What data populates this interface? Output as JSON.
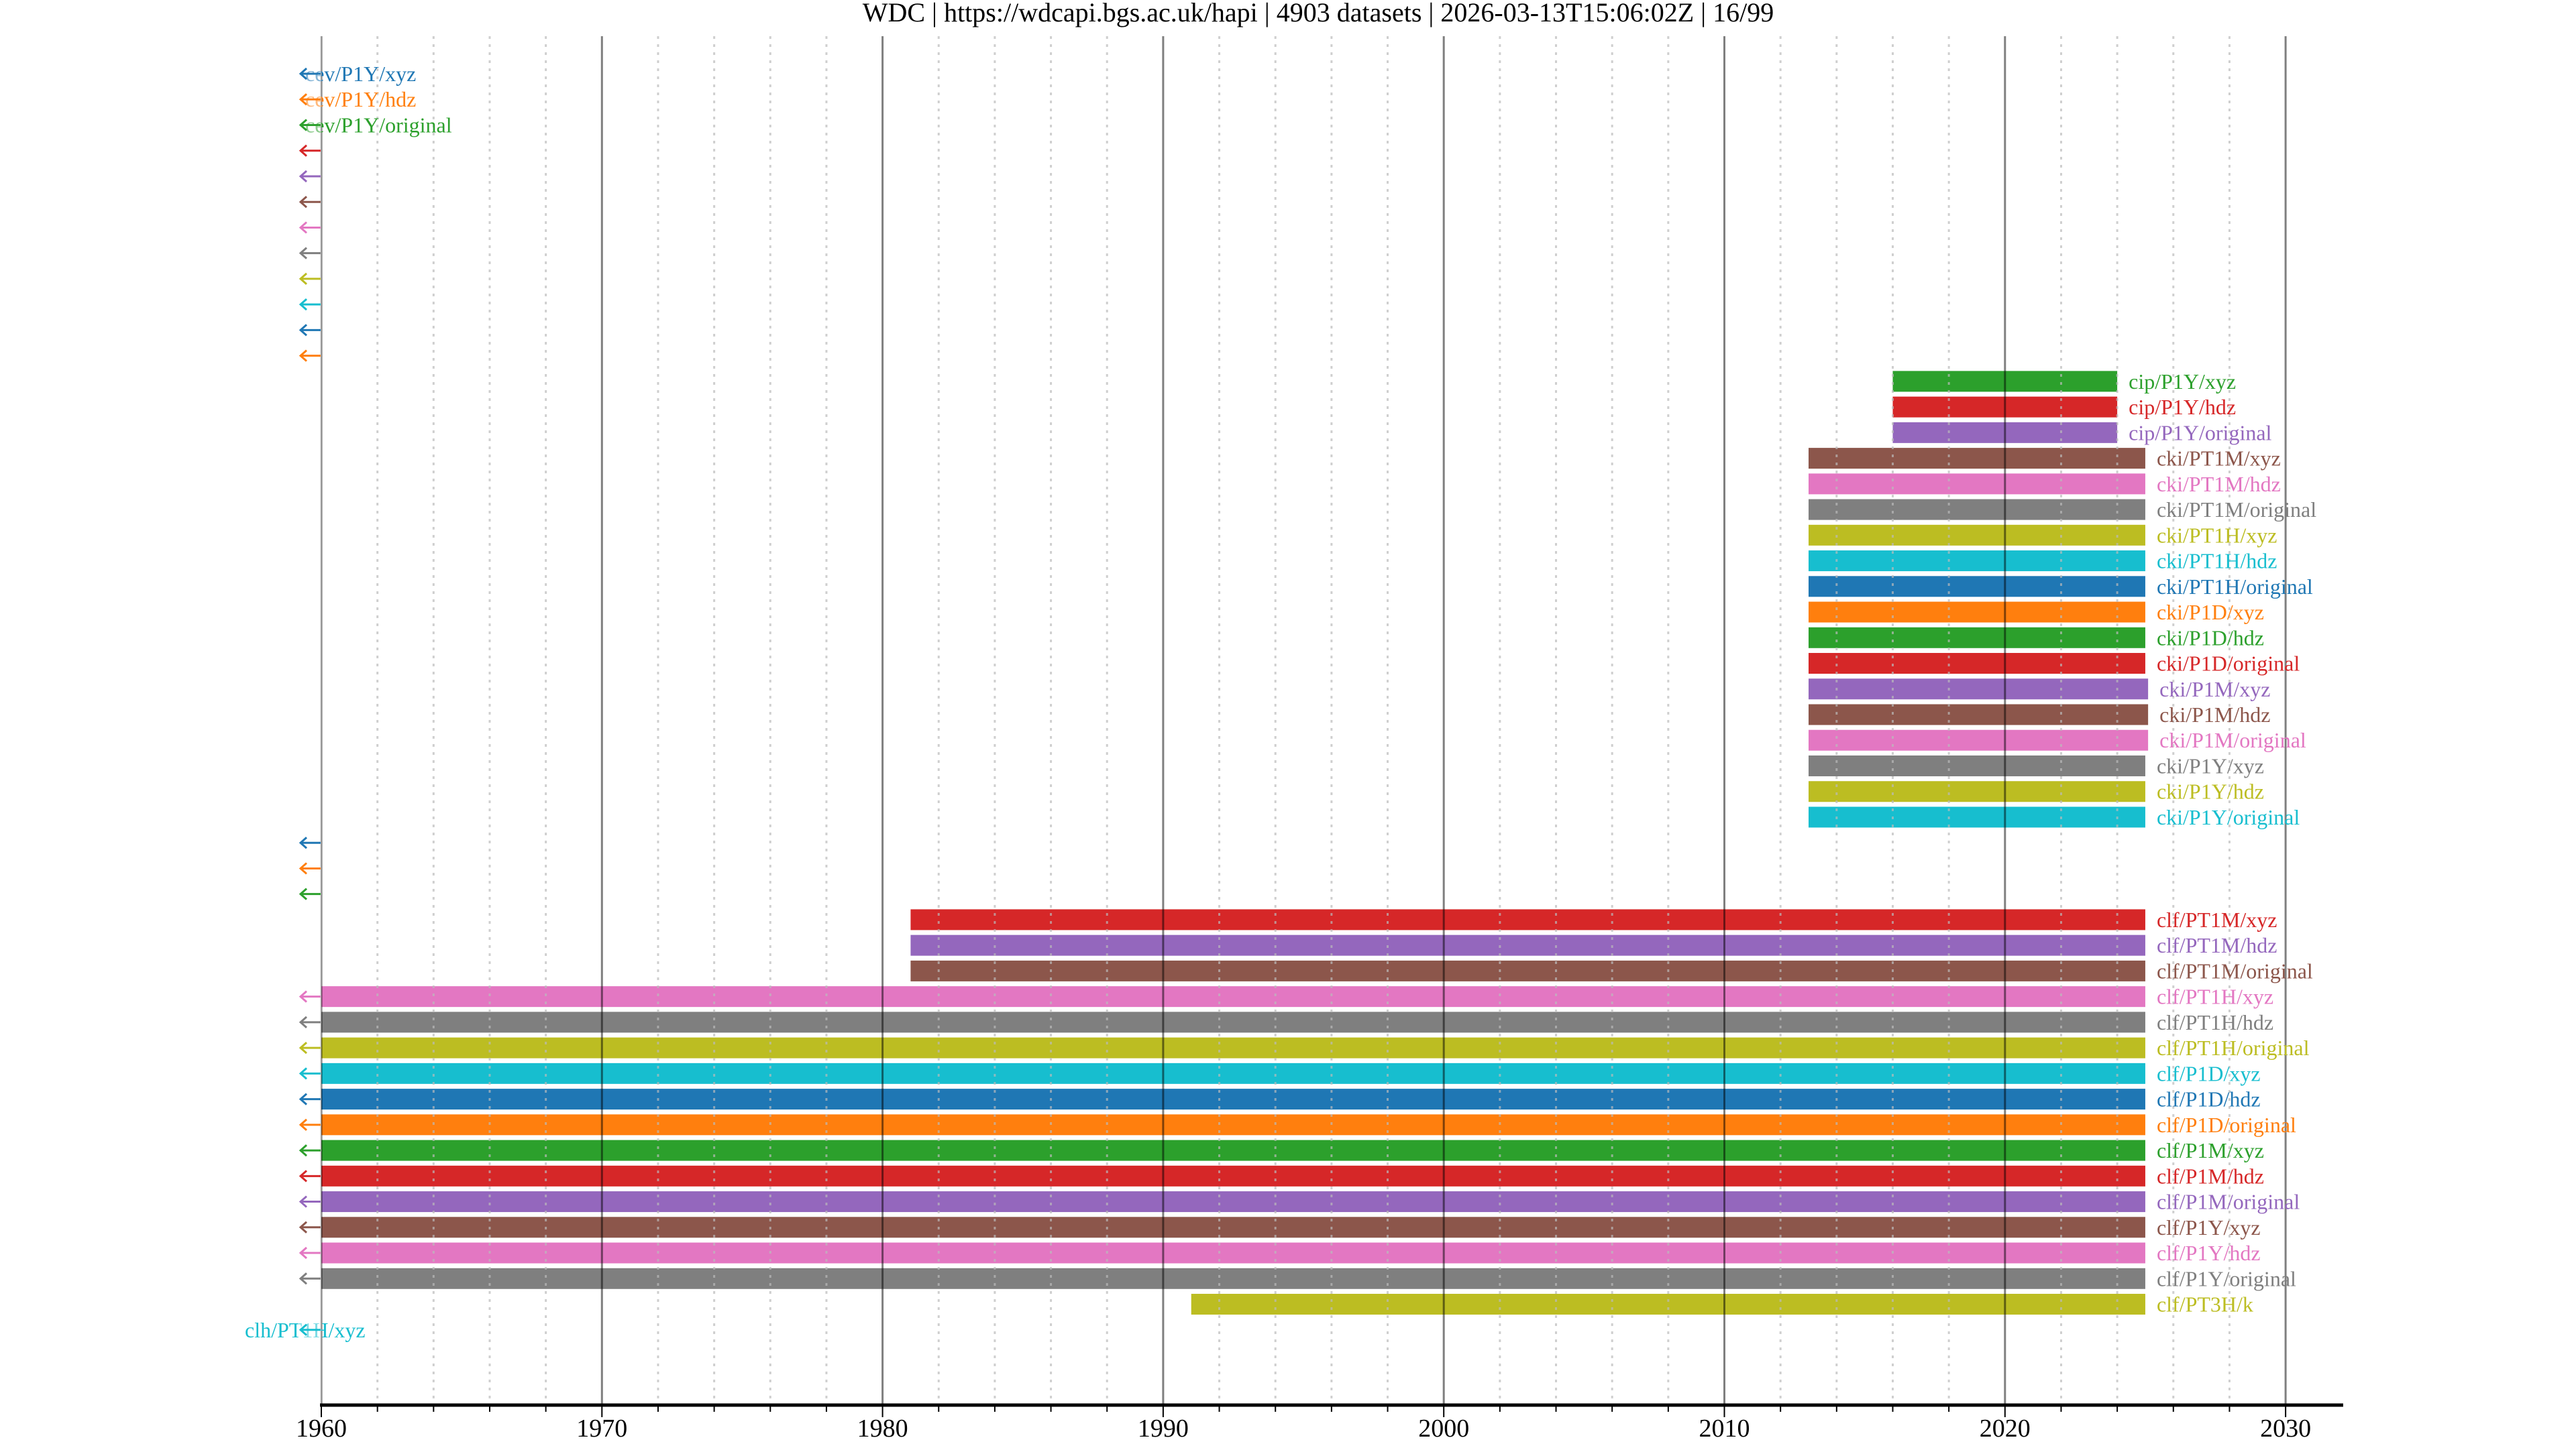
{
  "chart_data": {
    "type": "timeline",
    "title": "WDC | https://wdcapi.bgs.ac.uk/hapi | 4903 datasets | 2026-03-13T15:06:02Z | 16/99",
    "xlim": [
      1960,
      2031
    ],
    "x_ticks": [
      "1960",
      "1970",
      "1980",
      "1990",
      "2000",
      "2010",
      "2020",
      "2030"
    ],
    "x_tick_values": [
      1960,
      1970,
      1980,
      1990,
      2000,
      2010,
      2020,
      2030
    ],
    "minor_tick_step_years": 2,
    "grid": true,
    "palette": [
      "#1f77b4",
      "#ff7f0e",
      "#2ca02c",
      "#d62728",
      "#9467bd",
      "#8c564b",
      "#e377c2",
      "#7f7f7f",
      "#bcbd22",
      "#17becf"
    ],
    "rows": [
      {
        "label": "cev/P1Y/xyz",
        "starts_before_range": true,
        "start": null,
        "end": null
      },
      {
        "label": "cev/P1Y/hdz",
        "starts_before_range": true,
        "start": null,
        "end": null
      },
      {
        "label": "cev/P1Y/original",
        "starts_before_range": true,
        "start": null,
        "end": null
      },
      {
        "label": "",
        "starts_before_range": true,
        "start": null,
        "end": null
      },
      {
        "label": "",
        "starts_before_range": true,
        "start": null,
        "end": null
      },
      {
        "label": "",
        "starts_before_range": true,
        "start": null,
        "end": null
      },
      {
        "label": "",
        "starts_before_range": true,
        "start": null,
        "end": null
      },
      {
        "label": "",
        "starts_before_range": true,
        "start": null,
        "end": null
      },
      {
        "label": "",
        "starts_before_range": true,
        "start": null,
        "end": null
      },
      {
        "label": "",
        "starts_before_range": true,
        "start": null,
        "end": null
      },
      {
        "label": "",
        "starts_before_range": true,
        "start": null,
        "end": null
      },
      {
        "label": "",
        "starts_before_range": true,
        "start": null,
        "end": null
      },
      {
        "label": "cip/P1Y/xyz",
        "starts_before_range": false,
        "start": 2016.0,
        "end": 2024.0
      },
      {
        "label": "cip/P1Y/hdz",
        "starts_before_range": false,
        "start": 2016.0,
        "end": 2024.0
      },
      {
        "label": "cip/P1Y/original",
        "starts_before_range": false,
        "start": 2016.0,
        "end": 2024.0
      },
      {
        "label": "cki/PT1M/xyz",
        "starts_before_range": false,
        "start": 2013.0,
        "end": 2025.0
      },
      {
        "label": "cki/PT1M/hdz",
        "starts_before_range": false,
        "start": 2013.0,
        "end": 2025.0
      },
      {
        "label": "cki/PT1M/original",
        "starts_before_range": false,
        "start": 2013.0,
        "end": 2025.0
      },
      {
        "label": "cki/PT1H/xyz",
        "starts_before_range": false,
        "start": 2013.0,
        "end": 2025.0
      },
      {
        "label": "cki/PT1H/hdz",
        "starts_before_range": false,
        "start": 2013.0,
        "end": 2025.0
      },
      {
        "label": "cki/PT1H/original",
        "starts_before_range": false,
        "start": 2013.0,
        "end": 2025.0
      },
      {
        "label": "cki/P1D/xyz",
        "starts_before_range": false,
        "start": 2013.0,
        "end": 2025.0
      },
      {
        "label": "cki/P1D/hdz",
        "starts_before_range": false,
        "start": 2013.0,
        "end": 2025.0
      },
      {
        "label": "cki/P1D/original",
        "starts_before_range": false,
        "start": 2013.0,
        "end": 2025.0
      },
      {
        "label": "cki/P1M/xyz",
        "starts_before_range": false,
        "start": 2013.0,
        "end": 2025.1
      },
      {
        "label": "cki/P1M/hdz",
        "starts_before_range": false,
        "start": 2013.0,
        "end": 2025.1
      },
      {
        "label": "cki/P1M/original",
        "starts_before_range": false,
        "start": 2013.0,
        "end": 2025.1
      },
      {
        "label": "cki/P1Y/xyz",
        "starts_before_range": false,
        "start": 2013.0,
        "end": 2025.0
      },
      {
        "label": "cki/P1Y/hdz",
        "starts_before_range": false,
        "start": 2013.0,
        "end": 2025.0
      },
      {
        "label": "cki/P1Y/original",
        "starts_before_range": false,
        "start": 2013.0,
        "end": 2025.0
      },
      {
        "label": "",
        "starts_before_range": true,
        "start": null,
        "end": null
      },
      {
        "label": "",
        "starts_before_range": true,
        "start": null,
        "end": null
      },
      {
        "label": "",
        "starts_before_range": true,
        "start": null,
        "end": null
      },
      {
        "label": "clf/PT1M/xyz",
        "starts_before_range": false,
        "start": 1981.0,
        "end": 2025.0
      },
      {
        "label": "clf/PT1M/hdz",
        "starts_before_range": false,
        "start": 1981.0,
        "end": 2025.0
      },
      {
        "label": "clf/PT1M/original",
        "starts_before_range": false,
        "start": 1981.0,
        "end": 2025.0
      },
      {
        "label": "clf/PT1H/xyz",
        "starts_before_range": true,
        "start": 1960,
        "end": 2025.0
      },
      {
        "label": "clf/PT1H/hdz",
        "starts_before_range": true,
        "start": 1960,
        "end": 2025.0
      },
      {
        "label": "clf/PT1H/original",
        "starts_before_range": true,
        "start": 1960,
        "end": 2025.0
      },
      {
        "label": "clf/P1D/xyz",
        "starts_before_range": true,
        "start": 1960,
        "end": 2025.0
      },
      {
        "label": "clf/P1D/hdz",
        "starts_before_range": true,
        "start": 1960,
        "end": 2025.0
      },
      {
        "label": "clf/P1D/original",
        "starts_before_range": true,
        "start": 1960,
        "end": 2025.0
      },
      {
        "label": "clf/P1M/xyz",
        "starts_before_range": true,
        "start": 1960,
        "end": 2025.0
      },
      {
        "label": "clf/P1M/hdz",
        "starts_before_range": true,
        "start": 1960,
        "end": 2025.0
      },
      {
        "label": "clf/P1M/original",
        "starts_before_range": true,
        "start": 1960,
        "end": 2025.0
      },
      {
        "label": "clf/P1Y/xyz",
        "starts_before_range": true,
        "start": 1960,
        "end": 2025.0
      },
      {
        "label": "clf/P1Y/hdz",
        "starts_before_range": true,
        "start": 1960,
        "end": 2025.0
      },
      {
        "label": "clf/P1Y/original",
        "starts_before_range": true,
        "start": 1960,
        "end": 2025.0
      },
      {
        "label": "clf/PT3H/k",
        "starts_before_range": false,
        "start": 1991.0,
        "end": 2025.0
      },
      {
        "label": "clh/PT1H/xyz",
        "starts_before_range": true,
        "start": null,
        "end": null
      }
    ]
  }
}
